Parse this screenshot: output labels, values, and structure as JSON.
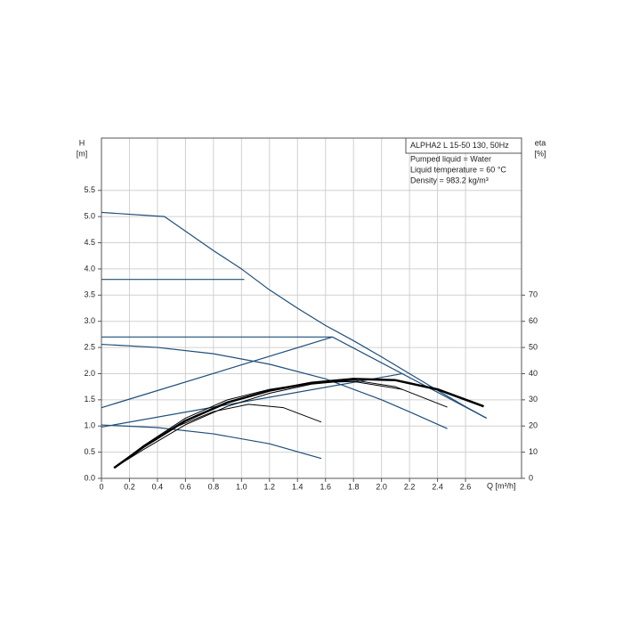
{
  "chart_data": {
    "type": "line",
    "legend_lines": [
      "ALPHA2 L 15-50 130, 50Hz",
      "Pumped liquid = Water",
      "Liquid temperature = 60 °C",
      "Density = 983.2 kg/m³"
    ],
    "ylabel": "H",
    "yunit": "[m]",
    "y2label": "eta",
    "y2unit": "[%]",
    "xlabel": "Q [m³/h]",
    "xlim": [
      0,
      3.0
    ],
    "ylim": [
      0,
      6.5
    ],
    "y2lim": [
      0,
      130
    ],
    "xticks": [
      0,
      0.2,
      0.4,
      0.6,
      0.8,
      {
        "value": 1,
        "label": "1.0"
      },
      1.2,
      1.4,
      1.6,
      1.8,
      {
        "value": 2,
        "label": "2.0"
      },
      2.2,
      2.4,
      2.6
    ],
    "yticks": [
      {
        "value": 0,
        "label": "0.0"
      },
      0.5,
      {
        "value": 1,
        "label": "1.0"
      },
      1.5,
      {
        "value": 2,
        "label": "2.0"
      },
      2.5,
      {
        "value": 3,
        "label": "3.0"
      },
      3.5,
      {
        "value": 4,
        "label": "4.0"
      },
      4.5,
      {
        "value": 5,
        "label": "5.0"
      },
      5.5
    ],
    "y2ticks": [
      0,
      10,
      20,
      30,
      40,
      50,
      60,
      70
    ],
    "grid": true,
    "series": [
      {
        "color": "#1f4e79",
        "width": 1.2,
        "x": [
          0,
          0.45,
          0.8,
          1.0,
          1.2,
          1.4,
          1.6,
          1.8,
          2.0,
          2.2,
          2.4,
          2.6,
          2.75
        ],
        "values": [
          5.08,
          5.0,
          4.35,
          4.0,
          3.6,
          3.25,
          2.92,
          2.63,
          2.32,
          2.0,
          1.68,
          1.37,
          1.15
        ]
      },
      {
        "color": "#1f4e79",
        "width": 1.2,
        "x": [
          0,
          1.02
        ],
        "values": [
          3.8,
          3.8
        ]
      },
      {
        "color": "#1f4e79",
        "width": 1.2,
        "x": [
          0,
          1.65,
          2.75
        ],
        "values": [
          2.7,
          2.7,
          1.15
        ]
      },
      {
        "color": "#1f4e79",
        "width": 1.2,
        "x": [
          0,
          1.65
        ],
        "values": [
          1.35,
          2.7
        ]
      },
      {
        "color": "#1f4e79",
        "width": 1.2,
        "x": [
          0,
          2.15
        ],
        "values": [
          0.98,
          2.0
        ]
      },
      {
        "color": "#1f4e79",
        "width": 1.2,
        "x": [
          0,
          0.4,
          0.8,
          1.2,
          1.6,
          2.0,
          2.2,
          2.47
        ],
        "values": [
          2.56,
          2.5,
          2.38,
          2.18,
          1.9,
          1.5,
          1.27,
          0.95
        ]
      },
      {
        "color": "#1f4e79",
        "width": 1.2,
        "x": [
          0,
          0.4,
          0.8,
          1.2,
          1.57
        ],
        "values": [
          1.02,
          0.97,
          0.85,
          0.66,
          0.38
        ]
      },
      {
        "color": "#000000",
        "width": 2.5,
        "axis": "y2",
        "x": [
          0.09,
          0.3,
          0.6,
          0.9,
          1.2,
          1.5,
          1.8,
          2.1,
          2.4,
          2.73
        ],
        "values": [
          4,
          12,
          22,
          29,
          33.5,
          36.5,
          38,
          37.5,
          34,
          27.5
        ]
      },
      {
        "color": "#000000",
        "width": 1,
        "axis": "y2",
        "x": [
          0.09,
          0.3,
          0.6,
          0.9,
          1.2,
          1.5,
          1.8,
          2.1,
          2.47
        ],
        "values": [
          4,
          11,
          20.5,
          27.5,
          32.5,
          36,
          37.5,
          35,
          27.2
        ]
      },
      {
        "color": "#000000",
        "width": 1,
        "axis": "y2",
        "x": [
          0.09,
          0.3,
          0.6,
          0.9,
          1.2,
          1.5,
          1.8,
          2.15
        ],
        "values": [
          4,
          12.5,
          23,
          30,
          34,
          36.5,
          37,
          34
        ]
      },
      {
        "color": "#000000",
        "width": 1,
        "axis": "y2",
        "x": [
          0.09,
          0.3,
          0.5,
          0.8,
          1.05,
          1.3,
          1.57
        ],
        "values": [
          4,
          12,
          19,
          25.5,
          28.3,
          27,
          21.5
        ]
      }
    ]
  }
}
